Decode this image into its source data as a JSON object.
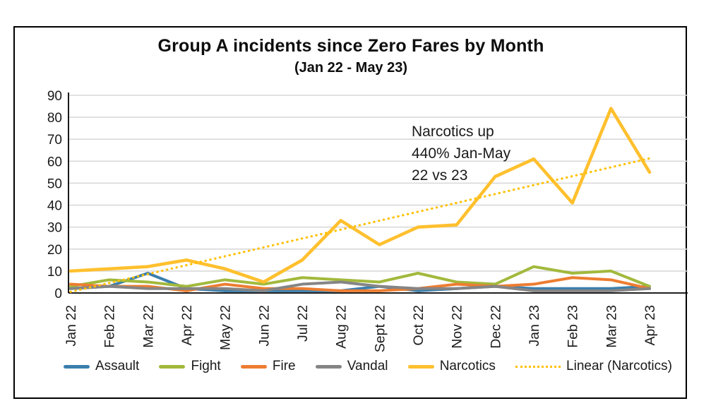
{
  "chart": {
    "title": "Group A incidents since Zero Fares by Month",
    "subtitle": "(Jan 22 - May 23)",
    "annotation": "Narcotics up\n440% Jan-May\n22 vs 23"
  },
  "chart_data": {
    "type": "line",
    "title": "Group A incidents since Zero Fares by Month",
    "subtitle": "(Jan 22 - May 23)",
    "categories": [
      "Jan 22",
      "Feb 22",
      "Mar 22",
      "Apr 22",
      "May 22",
      "Jun 22",
      "Jul 22",
      "Aug 22",
      "Sept 22",
      "Oct 22",
      "Nov 22",
      "Dec 22",
      "Jan 23",
      "Feb 23",
      "Mar 23",
      "Apr 23"
    ],
    "series": [
      {
        "name": "Assault",
        "color": "#3B7FAD",
        "values": [
          2,
          3,
          9,
          2,
          1,
          1,
          1,
          1,
          3,
          1,
          2,
          3,
          2,
          2,
          2,
          3
        ]
      },
      {
        "name": "Fight",
        "color": "#A2B93C",
        "values": [
          3,
          6,
          5,
          3,
          6,
          4,
          7,
          6,
          5,
          9,
          5,
          4,
          12,
          9,
          10,
          3
        ]
      },
      {
        "name": "Fire",
        "color": "#ED7D31",
        "values": [
          4,
          3,
          3,
          1,
          4,
          2,
          2,
          1,
          1,
          2,
          4,
          3,
          4,
          7,
          6,
          2
        ]
      },
      {
        "name": "Vandal",
        "color": "#858585",
        "values": [
          2,
          3,
          2,
          2,
          2,
          1,
          4,
          5,
          3,
          2,
          2,
          3,
          1,
          1,
          1,
          2
        ]
      },
      {
        "name": "Narcotics",
        "color": "#FFC02E",
        "values": [
          10,
          11,
          12,
          15,
          11,
          5,
          15,
          33,
          22,
          30,
          31,
          53,
          61,
          41,
          84,
          55
        ]
      }
    ],
    "trendline": {
      "name": "Linear (Narcotics)",
      "color": "#FFC000",
      "style": "dotted",
      "basis": "Narcotics",
      "start_value": 0.5,
      "end_value": 61.5
    },
    "ylim": [
      0,
      90
    ],
    "yticks": [
      0,
      10,
      20,
      30,
      40,
      50,
      60,
      70,
      80,
      90
    ],
    "grid": true,
    "gridline_color": "#D9D9D9",
    "axis_color": "#000000",
    "legend_position": "bottom",
    "annotation": {
      "text": "Narcotics up\n440% Jan-May\n22 vs 23"
    }
  }
}
